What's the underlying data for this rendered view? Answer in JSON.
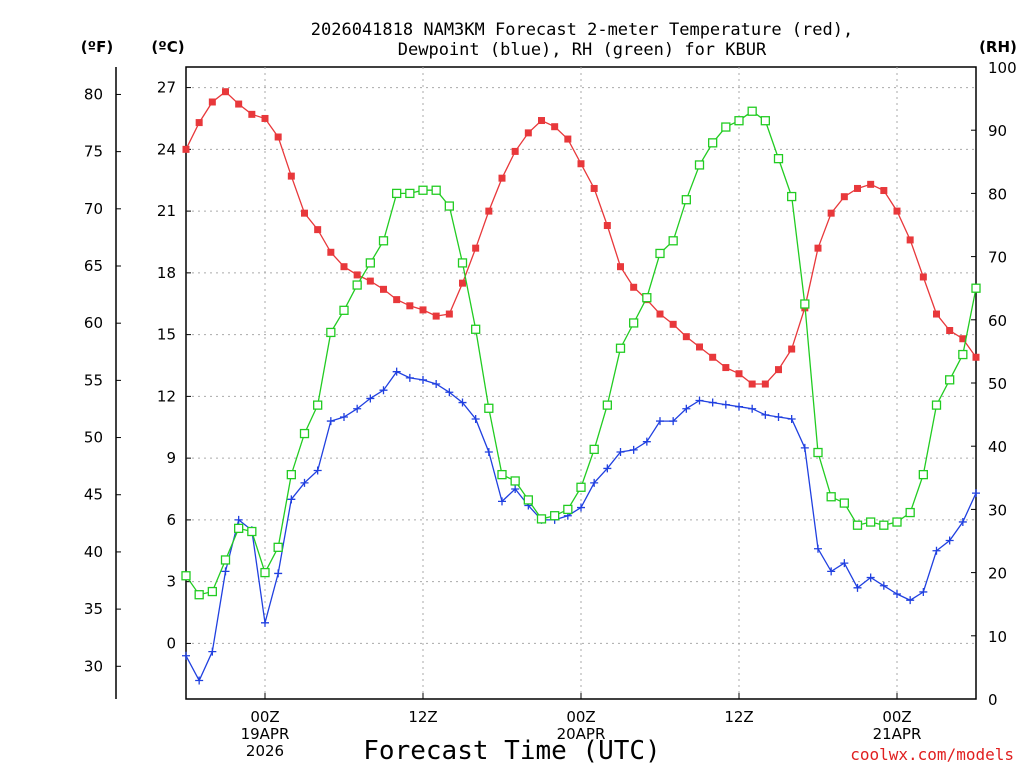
{
  "chart_data": {
    "type": "line",
    "title_lines": [
      "2026041818 NAM3KM Forecast 2-meter Temperature (red),",
      "Dewpoint (blue), RH (green) for KBUR"
    ],
    "xlabel": "Forecast Time (UTC)",
    "credit": "coolwx.com/models",
    "units": {
      "fahrenheit": "(ºF)",
      "celsius": "(ºC)",
      "rh": "(RH)"
    },
    "fahrenheit_ticks": [
      "30",
      "35",
      "40",
      "45",
      "50",
      "55",
      "60",
      "65",
      "70",
      "75",
      "80"
    ],
    "celsius_ticks": [
      "0",
      "3",
      "6",
      "9",
      "12",
      "15",
      "18",
      "21",
      "24",
      "27"
    ],
    "rh_ticks": [
      "0",
      "10",
      "20",
      "30",
      "40",
      "50",
      "60",
      "70",
      "80",
      "90",
      "100"
    ],
    "x_ticks": [
      {
        "hour": 6,
        "lines": [
          "00Z",
          "19APR",
          "2026"
        ]
      },
      {
        "hour": 18,
        "lines": [
          "12Z"
        ]
      },
      {
        "hour": 30,
        "lines": [
          "00Z",
          "20APR"
        ]
      },
      {
        "hour": 42,
        "lines": [
          "12Z"
        ]
      },
      {
        "hour": 54,
        "lines": [
          "00Z",
          "21APR"
        ]
      }
    ],
    "x_range_hours": [
      0,
      60
    ],
    "celsius_range": [
      -2.7,
      28.0
    ],
    "rh_range": [
      0,
      100
    ],
    "series": [
      {
        "name": "Temperature",
        "unit": "C",
        "color": "#e8383b",
        "marker": "filled-square",
        "values": [
          24.0,
          25.3,
          26.3,
          26.8,
          26.2,
          25.7,
          25.5,
          24.6,
          22.7,
          20.9,
          20.1,
          19.0,
          18.3,
          17.9,
          17.6,
          17.2,
          16.7,
          16.4,
          16.2,
          15.9,
          16.0,
          17.5,
          19.2,
          21.0,
          22.6,
          23.9,
          24.8,
          25.4,
          25.1,
          24.5,
          23.3,
          22.1,
          20.3,
          18.3,
          17.3,
          16.7,
          16.0,
          15.5,
          14.9,
          14.4,
          13.9,
          13.4,
          13.1,
          12.6,
          12.6,
          13.3,
          14.3,
          16.3,
          19.2,
          20.9,
          21.7,
          22.1,
          22.3,
          22.0,
          21.0,
          19.6,
          17.8,
          16.0,
          15.2,
          14.8,
          13.9
        ]
      },
      {
        "name": "Dewpoint",
        "unit": "C",
        "color": "#2040e0",
        "marker": "plus",
        "values": [
          -0.6,
          -1.8,
          -0.4,
          3.5,
          6.0,
          5.5,
          1.0,
          3.4,
          7.0,
          7.8,
          8.4,
          10.8,
          11.0,
          11.4,
          11.9,
          12.3,
          13.2,
          12.9,
          12.8,
          12.6,
          12.2,
          11.7,
          10.9,
          9.3,
          6.9,
          7.5,
          6.7,
          6.0,
          6.0,
          6.2,
          6.6,
          7.8,
          8.5,
          9.3,
          9.4,
          9.8,
          10.8,
          10.8,
          11.4,
          11.8,
          11.7,
          11.6,
          11.5,
          11.4,
          11.1,
          11.0,
          10.9,
          9.5,
          4.6,
          3.5,
          3.9,
          2.7,
          3.2,
          2.8,
          2.4,
          2.1,
          2.5,
          4.5,
          5.0,
          5.9,
          7.3
        ]
      },
      {
        "name": "Relative Humidity",
        "unit": "%",
        "color": "#22cc22",
        "marker": "open-square",
        "values": [
          19.5,
          16.5,
          17.0,
          22.0,
          27.0,
          26.5,
          20.0,
          24.0,
          35.5,
          42.0,
          46.5,
          58.0,
          61.5,
          65.5,
          69.0,
          72.5,
          80.0,
          80.0,
          80.5,
          80.5,
          78.0,
          69.0,
          58.5,
          46.0,
          35.5,
          34.5,
          31.5,
          28.5,
          29.0,
          30.0,
          33.5,
          39.5,
          46.5,
          55.5,
          59.5,
          63.5,
          70.5,
          72.5,
          79.0,
          84.5,
          88.0,
          90.5,
          91.5,
          93.0,
          91.5,
          85.5,
          79.5,
          62.5,
          39.0,
          32.0,
          31.0,
          27.5,
          28.0,
          27.5,
          28.0,
          29.5,
          35.5,
          46.5,
          50.5,
          54.5,
          65.0
        ]
      }
    ]
  }
}
